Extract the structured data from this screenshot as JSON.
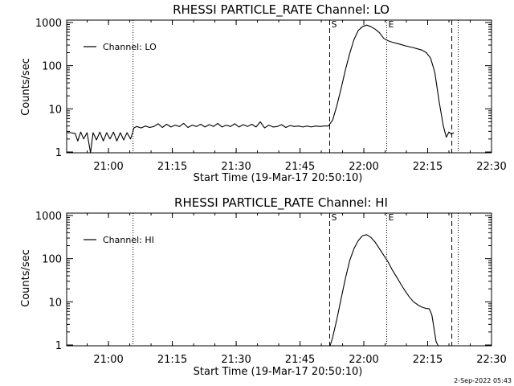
{
  "chart_data": [
    {
      "type": "line",
      "title": "RHESSI PARTICLE_RATE Channel: LO",
      "xlabel": "Start Time (19-Mar-17 20:50:10)",
      "ylabel": "Counts/sec",
      "x_tick_labels": [
        "21:00",
        "21:15",
        "21:30",
        "21:45",
        "22:00",
        "22:15",
        "22:30"
      ],
      "x_tick_minutes": [
        9.83,
        24.83,
        39.83,
        54.83,
        69.83,
        84.83,
        99.83
      ],
      "xlim_minutes": [
        0,
        99.83
      ],
      "y_scale": "log",
      "y_tick_labels": [
        "1",
        "10",
        "100",
        "1000"
      ],
      "y_tick_values": [
        1,
        10,
        100,
        1000
      ],
      "ylim": [
        0.8,
        1250
      ],
      "legend": {
        "position": "top-left",
        "entries": [
          "Channel: LO"
        ]
      },
      "markers": [
        {
          "label": "S",
          "x_minutes": 61.8,
          "style": "dashed"
        },
        {
          "label": "E",
          "x_minutes": 75.2,
          "style": "dotted"
        }
      ],
      "vlines": [
        {
          "x_minutes": 15.6,
          "style": "dotted"
        },
        {
          "x_minutes": 90.5,
          "style": "dashed"
        },
        {
          "x_minutes": 92.0,
          "style": "dotted"
        }
      ],
      "series": [
        {
          "name": "Channel: LO",
          "x": [
            0,
            1,
            2,
            2.6,
            3.3,
            4,
            4.8,
            5.6,
            6.2,
            7,
            7.8,
            8.6,
            9.4,
            10.2,
            11,
            11.8,
            12.6,
            13.4,
            14.2,
            15,
            15.5,
            15.8,
            16.5,
            17.5,
            18.5,
            19.5,
            20.5,
            21.5,
            22.5,
            23.5,
            24.5,
            25.5,
            26.5,
            27.5,
            28.5,
            29.5,
            30.5,
            31.5,
            32.5,
            33.5,
            34.5,
            35.5,
            36.5,
            37.5,
            38.5,
            39.5,
            40.5,
            41.5,
            42.5,
            43.5,
            44.5,
            45.5,
            46.5,
            47.5,
            48.5,
            49.5,
            50.5,
            51.5,
            52.5,
            53.5,
            54.5,
            55.5,
            56.5,
            57.5,
            58.5,
            59.5,
            60.5,
            61.5,
            62.5,
            63.5,
            64.5,
            65.5,
            66.5,
            67.5,
            68.5,
            69.5,
            70.5,
            71.5,
            72.5,
            73.5,
            74.5,
            75.5,
            76.5,
            77.5,
            78.5,
            79.5,
            80.5,
            81.5,
            82.5,
            83.5,
            84.5,
            85.5,
            86.5,
            87.5,
            88.5,
            89.2,
            89.8,
            90.4,
            91.0
          ],
          "values": [
            2.8,
            2.8,
            2.7,
            1.8,
            2.9,
            2.0,
            2.8,
            0.9,
            2.8,
            1.9,
            2.9,
            1.8,
            2.8,
            2.0,
            2.9,
            1.8,
            2.8,
            1.9,
            2.8,
            2.0,
            2.8,
            3.6,
            3.9,
            3.6,
            4.0,
            3.7,
            3.9,
            4.5,
            3.7,
            4.4,
            3.8,
            4.2,
            3.9,
            4.6,
            3.7,
            4.2,
            3.9,
            4.4,
            3.8,
            4.3,
            3.9,
            4.6,
            3.8,
            4.2,
            3.9,
            4.5,
            3.8,
            4.3,
            3.9,
            4.4,
            3.8,
            5.0,
            3.6,
            4.2,
            3.8,
            3.9,
            4.3,
            3.7,
            4.1,
            3.9,
            4.0,
            3.8,
            4.0,
            3.8,
            4.0,
            3.9,
            4.0,
            4.0,
            5.5,
            12,
            30,
            80,
            190,
            400,
            650,
            800,
            870,
            800,
            700,
            580,
            430,
            380,
            350,
            330,
            310,
            290,
            275,
            260,
            245,
            230,
            200,
            150,
            70,
            15,
            4,
            2.2,
            2.9,
            2.6,
            2.8
          ]
        }
      ]
    },
    {
      "type": "line",
      "title": "RHESSI PARTICLE_RATE Channel: HI",
      "xlabel": "Start Time (19-Mar-17 20:50:10)",
      "ylabel": "Counts/sec",
      "x_tick_labels": [
        "21:00",
        "21:15",
        "21:30",
        "21:45",
        "22:00",
        "22:15",
        "22:30"
      ],
      "x_tick_minutes": [
        9.83,
        24.83,
        39.83,
        54.83,
        69.83,
        84.83,
        99.83
      ],
      "xlim_minutes": [
        0,
        99.83
      ],
      "y_scale": "log",
      "y_tick_labels": [
        "1",
        "10",
        "100",
        "1000"
      ],
      "y_tick_values": [
        1,
        10,
        100,
        1000
      ],
      "ylim": [
        0.8,
        1250
      ],
      "legend": {
        "position": "top-left",
        "entries": [
          "Channel: HI"
        ]
      },
      "markers": [
        {
          "label": "S",
          "x_minutes": 61.8,
          "style": "dashed"
        },
        {
          "label": "E",
          "x_minutes": 75.2,
          "style": "dotted"
        }
      ],
      "vlines": [
        {
          "x_minutes": 15.6,
          "style": "dotted"
        },
        {
          "x_minutes": 90.5,
          "style": "dashed"
        },
        {
          "x_minutes": 92.0,
          "style": "dotted"
        }
      ],
      "series": [
        {
          "name": "Channel: HI",
          "x": [
            61.9,
            62.5,
            63.5,
            64.5,
            65.5,
            66.5,
            67.5,
            68.5,
            69.5,
            70.5,
            71.5,
            72.5,
            73.5,
            74.5,
            75.5,
            76.5,
            77.5,
            78.5,
            79.5,
            80.5,
            81.5,
            82.5,
            83.5,
            84.5,
            85.2,
            85.8,
            86.3,
            86.8,
            87.3
          ],
          "values": [
            0.8,
            1.5,
            4,
            12,
            35,
            90,
            170,
            260,
            340,
            360,
            310,
            240,
            170,
            120,
            85,
            55,
            38,
            26,
            18,
            13,
            10,
            8.5,
            7.5,
            7,
            6.9,
            5,
            2.5,
            1.2,
            0.8
          ]
        }
      ]
    }
  ],
  "footer": {
    "timestamp": "2-Sep-2022 05:43"
  },
  "colors": {
    "background": "#ffffff",
    "foreground": "#000000"
  }
}
